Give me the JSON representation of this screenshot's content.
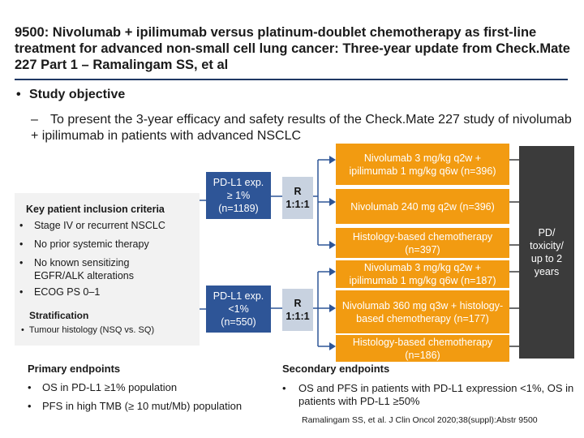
{
  "title": "9500: Nivolumab + ipilimumab versus platinum-doublet chemotherapy as first-line treatment for advanced non-small cell lung cancer: Three-year update from Check.Mate 227 Part 1 – Ramalingam SS, et al",
  "objective": {
    "bullet": "•",
    "heading": "Study objective",
    "dash": "–",
    "text": "To present the 3-year efficacy and safety results of the Check.Mate 227 study of nivolumab + ipilimumab in patients with advanced NSCLC"
  },
  "inclusion": {
    "heading": "Key patient inclusion criteria",
    "bullet": "•",
    "items": [
      "Stage IV or recurrent NSCLC",
      "No prior systemic therapy",
      "No known sensitizing EGFR/ALK alterations",
      "ECOG PS 0–1"
    ],
    "stratification_heading": "Stratification",
    "stratification_items": [
      "Tumour histology (NSQ vs. SQ)"
    ]
  },
  "cohorts": [
    {
      "label": "PD-L1 exp. ≥ 1% (n=1189)"
    },
    {
      "label": "PD-L1 exp. <1% (n=550)"
    }
  ],
  "randomization": [
    {
      "label": "R 1:1:1"
    },
    {
      "label": "R 1:1:1"
    }
  ],
  "arms": [
    {
      "label": "Nivolumab 3 mg/kg q2w + ipilimumab 1 mg/kg q6w (n=396)"
    },
    {
      "label": "Nivolumab 240 mg q2w (n=396)"
    },
    {
      "label": "Histology-based chemotherapy (n=397)"
    },
    {
      "label": "Nivolumab 3 mg/kg q2w + ipilimumab 1 mg/kg q6w (n=187)"
    },
    {
      "label": "Nivolumab 360 mg q3w + histology-based chemotherapy (n=177)"
    },
    {
      "label": "Histology-based chemotherapy (n=186)"
    }
  ],
  "endpoint_box": "PD/ toxicity/ up to 2 years",
  "primary": {
    "heading": "Primary endpoints",
    "bullet": "•",
    "items": [
      "OS in PD-L1 ≥1% population",
      "PFS in high TMB (≥ 10 mut/Mb) population"
    ]
  },
  "secondary": {
    "heading": "Secondary endpoints",
    "bullet": "•",
    "item": "OS and PFS in patients with PD-L1 expression <1%, OS in patients with PD-L1 ≥50%"
  },
  "reference": "Ramalingam SS, et al. J Clin Oncol 2020;38(suppl):Abstr 9500",
  "colors": {
    "title_rule": "#1f3864",
    "cohort_blue": "#2e5597",
    "arm_orange": "#f29b11",
    "randomization_box": "#c8d2e0",
    "end_box": "#3b3b3b",
    "panel_grey": "#f2f2f2"
  }
}
